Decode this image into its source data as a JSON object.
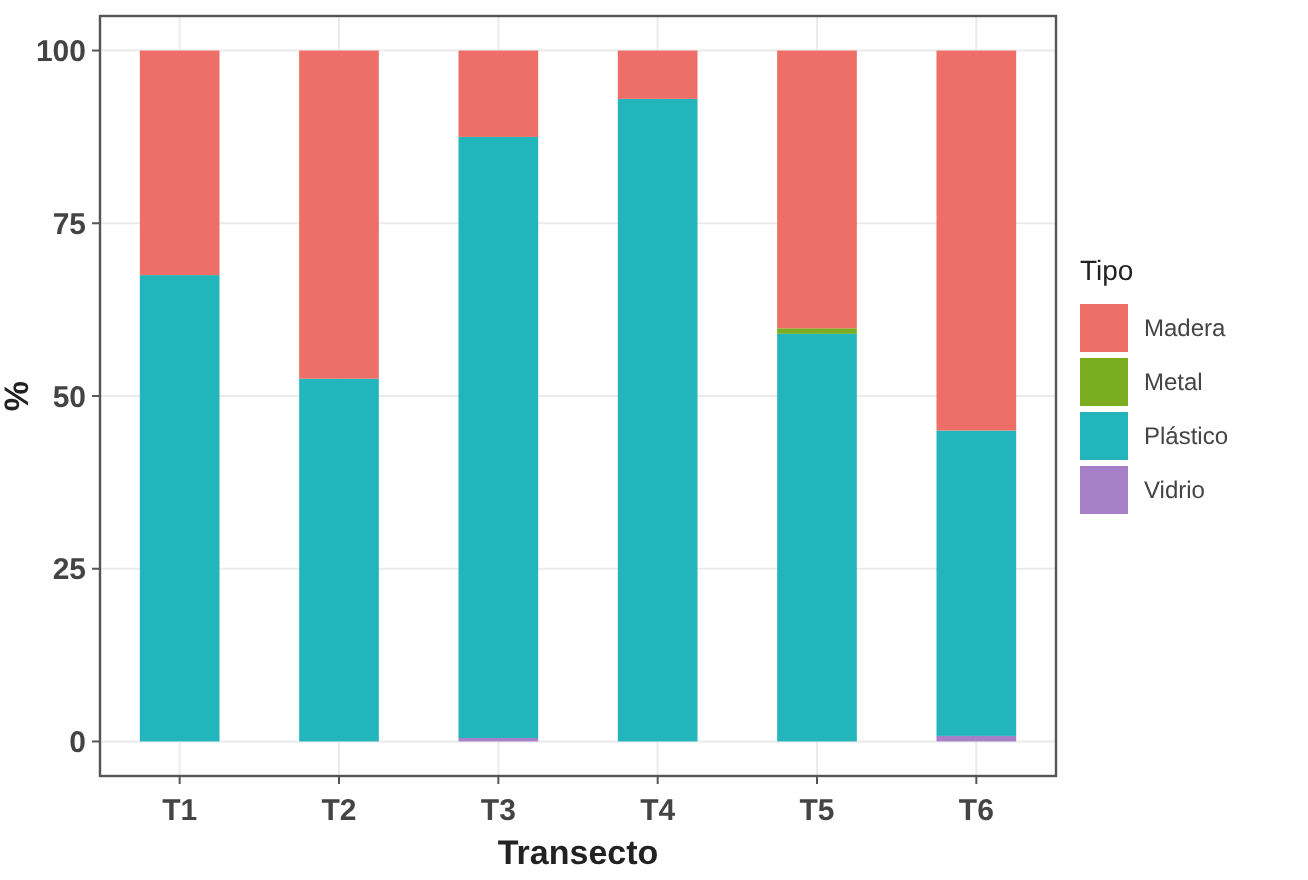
{
  "chart_data": {
    "type": "bar",
    "stacked": true,
    "xlabel": "Transecto",
    "ylabel": "%",
    "legend_title": "Tipo",
    "legend": "right",
    "grid": true,
    "categories": [
      "T1",
      "T2",
      "T3",
      "T4",
      "T5",
      "T6"
    ],
    "ylim": [
      -5,
      105
    ],
    "yticks": [
      0,
      25,
      50,
      75,
      100
    ],
    "series": [
      {
        "name": "Vidrio",
        "color": "#a680c8",
        "values": [
          0,
          0,
          0.5,
          0,
          0,
          0.8
        ]
      },
      {
        "name": "Plástico",
        "color": "#22b5bb",
        "values": [
          67.5,
          52.5,
          87,
          93,
          59,
          44.2
        ]
      },
      {
        "name": "Metal",
        "color": "#7aad1f",
        "values": [
          0,
          0,
          0,
          0,
          0.8,
          0
        ]
      },
      {
        "name": "Madera",
        "color": "#ee6e68",
        "values": [
          32.5,
          47.5,
          12.5,
          7,
          40.2,
          55
        ]
      }
    ]
  }
}
